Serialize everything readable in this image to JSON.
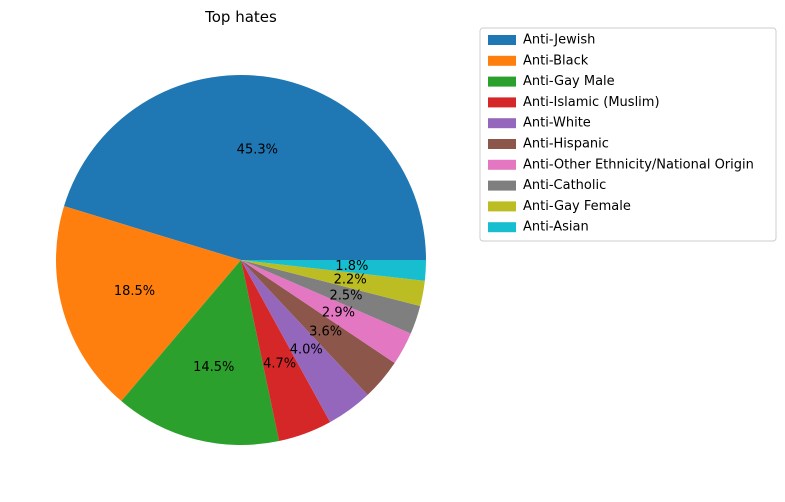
{
  "chart_data": {
    "type": "pie",
    "title": "Top hates",
    "categories": [
      "Anti-Jewish",
      "Anti-Black",
      "Anti-Gay Male",
      "Anti-Islamic (Muslim)",
      "Anti-White",
      "Anti-Hispanic",
      "Anti-Other Ethnicity/National Origin",
      "Anti-Catholic",
      "Anti-Gay Female",
      "Anti-Asian"
    ],
    "values": [
      45.3,
      18.5,
      14.5,
      4.7,
      4.0,
      3.6,
      2.9,
      2.5,
      2.2,
      1.8
    ],
    "labels": [
      "45.3%",
      "18.5%",
      "14.5%",
      "4.7%",
      "4.0%",
      "3.6%",
      "2.9%",
      "2.5%",
      "2.2%",
      "1.8%"
    ],
    "colors": [
      "#1f77b4",
      "#ff7f0e",
      "#2ca02c",
      "#d62728",
      "#9467bd",
      "#8c564b",
      "#e377c2",
      "#7f7f7f",
      "#bcbd22",
      "#17becf"
    ],
    "legend_position": "upper-right-outside"
  }
}
